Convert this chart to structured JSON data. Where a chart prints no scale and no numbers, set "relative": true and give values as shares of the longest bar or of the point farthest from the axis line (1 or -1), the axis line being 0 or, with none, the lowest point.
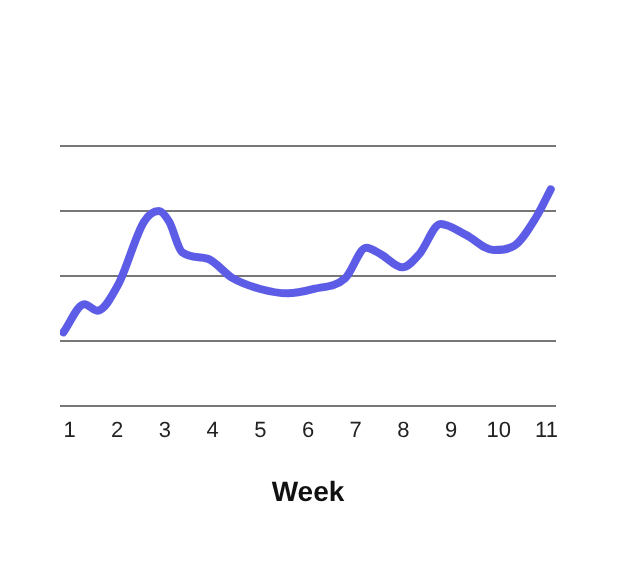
{
  "chart_data": {
    "type": "line",
    "relative": true,
    "xlabel": "Week",
    "xlim": [
      0.8,
      11.2
    ],
    "xticks": [
      1,
      2,
      3,
      4,
      5,
      6,
      7,
      8,
      9,
      10,
      11
    ],
    "grid": "y",
    "line_style": "solid",
    "series": [
      {
        "color": "#5c5ce6",
        "x": [
          0.87,
          1.31,
          1.58,
          2.02,
          2.56,
          2.87,
          3.09,
          3.36,
          3.89,
          4.42,
          5.0,
          5.58,
          6.11,
          6.78,
          7.22,
          7.53,
          7.98,
          8.33,
          8.78,
          9.31,
          9.89,
          10.33,
          10.78,
          11.09
        ],
        "values": [
          0.34,
          0.47,
          0.44,
          0.56,
          0.85,
          0.9,
          0.85,
          0.71,
          0.68,
          0.59,
          0.54,
          0.52,
          0.54,
          0.59,
          0.73,
          0.7,
          0.64,
          0.7,
          0.84,
          0.79,
          0.72,
          0.74,
          0.87,
          1.0
        ]
      }
    ]
  }
}
